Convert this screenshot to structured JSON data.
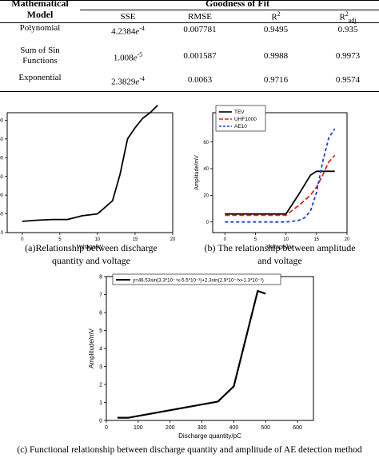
{
  "table": {
    "row_header": "Mathematical Model",
    "group_header": "Goodness of Fit",
    "columns": [
      "SSE",
      "RMSE",
      "R2",
      "R2adj"
    ],
    "rows": [
      {
        "model": "Polynomial",
        "sse_mantissa": "4.2384",
        "sse_exp": "-4",
        "rmse": "0.007781",
        "r2": "0.9495",
        "r2adj": "0.935"
      },
      {
        "model": "Sum of Sin Functions",
        "sse_mantissa": "1.008",
        "sse_exp": "-5",
        "rmse": "0.001587",
        "r2": "0.9988",
        "r2adj": "0.9973"
      },
      {
        "model": "Exponential",
        "sse_mantissa": "2.3829",
        "sse_exp": "-4",
        "rmse": "0.0063",
        "r2": "0.9716",
        "r2adj": "0.9574"
      }
    ]
  },
  "captions": {
    "a": "(a)Relationship between discharge quantity and voltage",
    "b": "(b) The relationship between amplitude and voltage",
    "c": "(c) Functional relationship between discharge quantity and amplitude of AE detection method"
  },
  "chart_data": [
    {
      "type": "line",
      "xlabel": "Voltage/kV",
      "ylabel": "",
      "xlim": [
        -2,
        20
      ],
      "ylim": [
        0,
        320
      ],
      "xticks": [
        "0",
        "5",
        "10",
        "15",
        "20"
      ],
      "yticks": [
        "0",
        "50",
        "100",
        "150",
        "200",
        "250",
        "300"
      ],
      "series": [
        {
          "x": [
            0,
            2,
            4,
            6,
            8,
            10,
            12,
            13,
            14,
            15,
            16,
            17,
            18
          ],
          "values": [
            30,
            33,
            35,
            35,
            45,
            50,
            85,
            155,
            250,
            280,
            305,
            320,
            340
          ]
        }
      ]
    },
    {
      "type": "line",
      "xlabel": "Voltage/kV",
      "ylabel": "Amplitude/mV",
      "xlim": [
        -2,
        20
      ],
      "ylim": [
        -8,
        82
      ],
      "xticks": [
        "0",
        "5",
        "10",
        "15",
        "20"
      ],
      "yticks": [
        "0",
        "20",
        "40",
        "60"
      ],
      "legend_position": "top-left",
      "series": [
        {
          "name": "TEV",
          "color": "#000000",
          "x": [
            0,
            10,
            12,
            14,
            15,
            16,
            18
          ],
          "values": [
            6,
            6,
            20,
            35,
            38,
            38,
            38
          ]
        },
        {
          "name": "UHF1000",
          "color": "#e3231b",
          "x": [
            0,
            10,
            12,
            14,
            15,
            16,
            17,
            18
          ],
          "values": [
            5,
            5,
            12,
            20,
            26,
            35,
            45,
            50
          ]
        },
        {
          "name": "AE10",
          "color": "#1d3fd6",
          "x": [
            0,
            10,
            12,
            13,
            14,
            15,
            16,
            17,
            18
          ],
          "values": [
            0,
            0,
            1,
            3,
            8,
            22,
            45,
            63,
            70
          ]
        }
      ]
    },
    {
      "type": "line",
      "xlabel": "Discharge quantity/pC",
      "ylabel": "Amplitude/mV",
      "xlim": [
        0,
        650
      ],
      "ylim": [
        0,
        8
      ],
      "xticks": [
        "0",
        "100",
        "200",
        "300",
        "400",
        "500",
        "600"
      ],
      "yticks": [
        "0",
        "1",
        "2",
        "3",
        "4",
        "5",
        "6",
        "7",
        "8"
      ],
      "legend_position": "top",
      "series": [
        {
          "name": "y=46.53sin(3.3*10⁻⁴x-5.5*10⁻³)+2.3sin(2.9*10⁻²x+1.3*10⁻²)",
          "x": [
            35,
            70,
            350,
            400,
            475,
            500
          ],
          "values": [
            0.15,
            0.15,
            1.05,
            1.9,
            7.2,
            7.05
          ]
        }
      ]
    }
  ]
}
